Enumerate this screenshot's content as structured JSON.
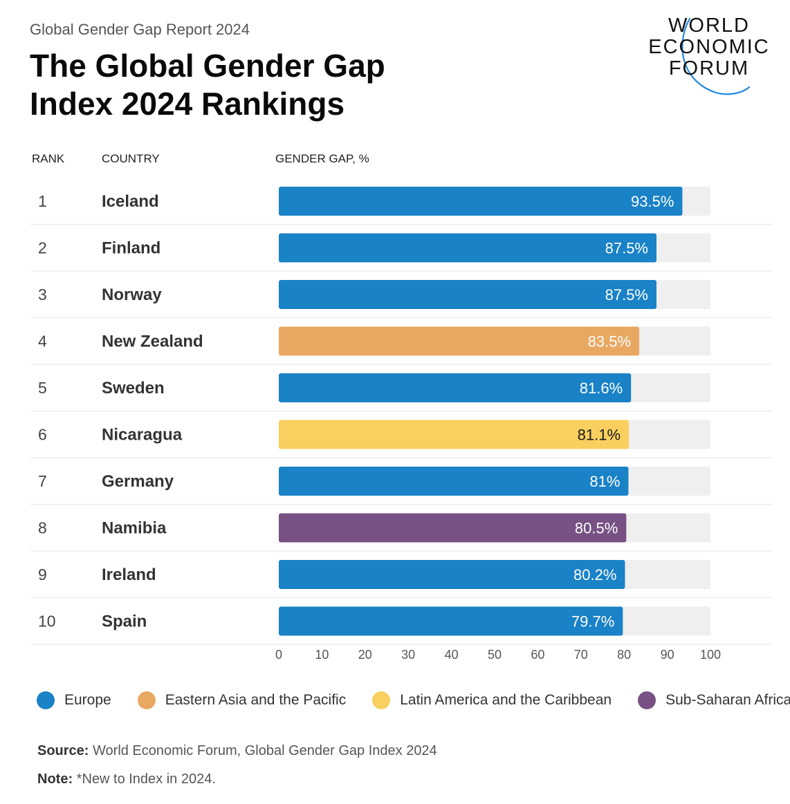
{
  "header": {
    "subtitle": "Global Gender Gap Report 2024",
    "title_line1": "The Global Gender Gap",
    "title_line2": "Index 2024 Rankings"
  },
  "logo": {
    "line1": "WORLD",
    "line2": "ECONOMIC",
    "line3": "FORUM",
    "arc_color": "#1e88e5"
  },
  "columns": {
    "rank": "RANK",
    "country": "COUNTRY",
    "gap": "GENDER GAP, %"
  },
  "chart_data": {
    "type": "bar",
    "orientation": "horizontal",
    "title": "The Global Gender Gap Index 2024 Rankings",
    "xlabel": "GENDER GAP, %",
    "xlim": [
      0,
      100
    ],
    "xticks": [
      0,
      10,
      20,
      30,
      40,
      50,
      60,
      70,
      80,
      90,
      100
    ],
    "rows": [
      {
        "rank": "1",
        "country": "Iceland",
        "value": 93.5,
        "label": "93.5%",
        "region": "Europe"
      },
      {
        "rank": "2",
        "country": "Finland",
        "value": 87.5,
        "label": "87.5%",
        "region": "Europe"
      },
      {
        "rank": "3",
        "country": "Norway",
        "value": 87.5,
        "label": "87.5%",
        "region": "Europe"
      },
      {
        "rank": "4",
        "country": "New Zealand",
        "value": 83.5,
        "label": "83.5%",
        "region": "Eastern Asia and the Pacific"
      },
      {
        "rank": "5",
        "country": "Sweden",
        "value": 81.6,
        "label": "81.6%",
        "region": "Europe"
      },
      {
        "rank": "6",
        "country": "Nicaragua",
        "value": 81.1,
        "label": "81.1%",
        "region": "Latin America and the Caribbean"
      },
      {
        "rank": "7",
        "country": "Germany",
        "value": 81,
        "label": "81%",
        "region": "Europe"
      },
      {
        "rank": "8",
        "country": "Namibia",
        "value": 80.5,
        "label": "80.5%",
        "region": "Sub-Saharan Africa"
      },
      {
        "rank": "9",
        "country": "Ireland",
        "value": 80.2,
        "label": "80.2%",
        "region": "Europe"
      },
      {
        "rank": "10",
        "country": "Spain",
        "value": 79.7,
        "label": "79.7%",
        "region": "Europe"
      }
    ],
    "regions": [
      {
        "name": "Europe",
        "color": "#1a82c6",
        "text_color": "#ffffff"
      },
      {
        "name": "Eastern Asia and the Pacific",
        "color": "#e8a862",
        "text_color": "#ffffff"
      },
      {
        "name": "Latin America and the Caribbean",
        "color": "#f9d05f",
        "text_color": "#1a1a1a"
      },
      {
        "name": "Sub-Saharan Africa",
        "color": "#775183",
        "text_color": "#ffffff"
      }
    ],
    "track_color": "#efefef"
  },
  "footer": {
    "source_label": "Source:",
    "source_text": " World Economic Forum, Global Gender Gap Index 2024",
    "note_label": "Note:",
    "note_text": " *New to Index in 2024."
  }
}
